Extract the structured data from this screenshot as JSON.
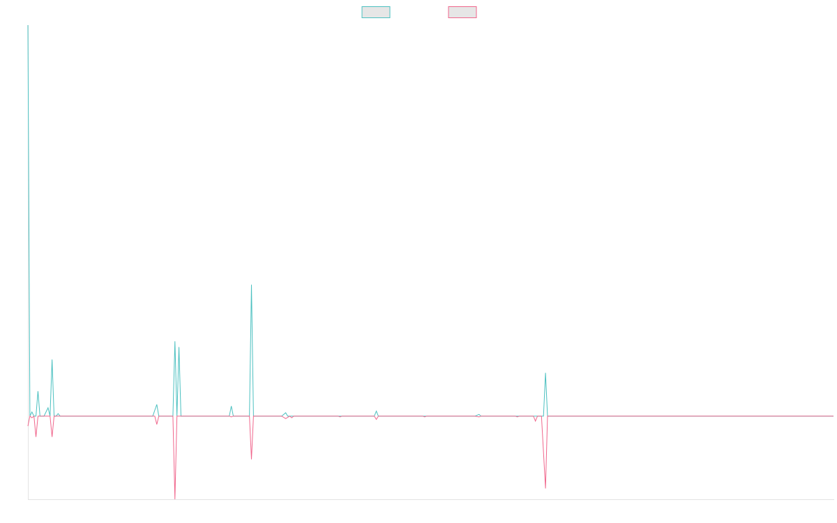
{
  "chart_data": {
    "type": "line",
    "title": "",
    "xlabel": "",
    "ylabel": "",
    "grid": false,
    "legend": "top-center",
    "xlim": [
      0,
      200
    ],
    "ylim": [
      -1,
      4.7
    ],
    "series": [
      {
        "color": "#4bc0c0",
        "points": [
          [
            0,
            4.7
          ],
          [
            0.5,
            0
          ],
          [
            1,
            0.05
          ],
          [
            1.5,
            0
          ],
          [
            2,
            0
          ],
          [
            2.5,
            0.3
          ],
          [
            3,
            0
          ],
          [
            4,
            0
          ],
          [
            5,
            0.1
          ],
          [
            5.5,
            0
          ],
          [
            6,
            0.68
          ],
          [
            6.5,
            0
          ],
          [
            7,
            0
          ],
          [
            7.5,
            0.03
          ],
          [
            8,
            0
          ],
          [
            31,
            0
          ],
          [
            32,
            0.14
          ],
          [
            32.5,
            0
          ],
          [
            36,
            0
          ],
          [
            36.5,
            0.9
          ],
          [
            37,
            0
          ],
          [
            37.5,
            0.83
          ],
          [
            38,
            0
          ],
          [
            50,
            0
          ],
          [
            50.5,
            0.12
          ],
          [
            51,
            0
          ],
          [
            54,
            0
          ],
          [
            55,
            0
          ],
          [
            55.5,
            1.58
          ],
          [
            56,
            0
          ],
          [
            63,
            0
          ],
          [
            64,
            0.04
          ],
          [
            64.5,
            0
          ],
          [
            65,
            0
          ],
          [
            65.5,
            0
          ],
          [
            77,
            0
          ],
          [
            78,
            0
          ],
          [
            86,
            0
          ],
          [
            86.5,
            0.06
          ],
          [
            87,
            0
          ],
          [
            98,
            0
          ],
          [
            98.5,
            0
          ],
          [
            99,
            0
          ],
          [
            111,
            0
          ],
          [
            112,
            0.02
          ],
          [
            112.5,
            0
          ],
          [
            121,
            0
          ],
          [
            121.5,
            0
          ],
          [
            125,
            0
          ],
          [
            126,
            0
          ],
          [
            127,
            0
          ],
          [
            127.5,
            0
          ],
          [
            128,
            0
          ],
          [
            128.5,
            0.52
          ],
          [
            129,
            0
          ],
          [
            200,
            0
          ]
        ]
      },
      {
        "color": "#f0668c",
        "points": [
          [
            0,
            -0.12
          ],
          [
            0.5,
            0
          ],
          [
            1,
            -0.02
          ],
          [
            1.5,
            0
          ],
          [
            2,
            -0.25
          ],
          [
            2.5,
            0
          ],
          [
            4,
            0
          ],
          [
            5,
            0
          ],
          [
            5.5,
            0
          ],
          [
            6,
            -0.25
          ],
          [
            6.5,
            0
          ],
          [
            8,
            0
          ],
          [
            31,
            0
          ],
          [
            31.5,
            0
          ],
          [
            32,
            -0.1
          ],
          [
            32.5,
            0
          ],
          [
            36,
            0
          ],
          [
            36.5,
            -1.0
          ],
          [
            37,
            0
          ],
          [
            38,
            0
          ],
          [
            50,
            0
          ],
          [
            50.5,
            -0.01
          ],
          [
            51,
            0
          ],
          [
            54,
            0
          ],
          [
            54.5,
            0
          ],
          [
            55,
            0
          ],
          [
            55.5,
            -0.52
          ],
          [
            56,
            0
          ],
          [
            63,
            0
          ],
          [
            64,
            -0.03
          ],
          [
            65,
            0
          ],
          [
            65.5,
            -0.02
          ],
          [
            66,
            0
          ],
          [
            77,
            0
          ],
          [
            77.5,
            -0.01
          ],
          [
            78,
            0
          ],
          [
            86,
            0
          ],
          [
            86.5,
            -0.04
          ],
          [
            87,
            0
          ],
          [
            98,
            0
          ],
          [
            98.5,
            -0.01
          ],
          [
            99,
            0
          ],
          [
            111,
            0
          ],
          [
            112,
            -0.01
          ],
          [
            112.5,
            0
          ],
          [
            121,
            0
          ],
          [
            121.5,
            -0.01
          ],
          [
            122,
            0
          ],
          [
            125,
            0
          ],
          [
            125.5,
            0
          ],
          [
            126,
            -0.06
          ],
          [
            126.5,
            0
          ],
          [
            127.5,
            0
          ],
          [
            128.5,
            -0.87
          ],
          [
            129,
            0
          ],
          [
            200,
            0
          ]
        ]
      }
    ]
  }
}
